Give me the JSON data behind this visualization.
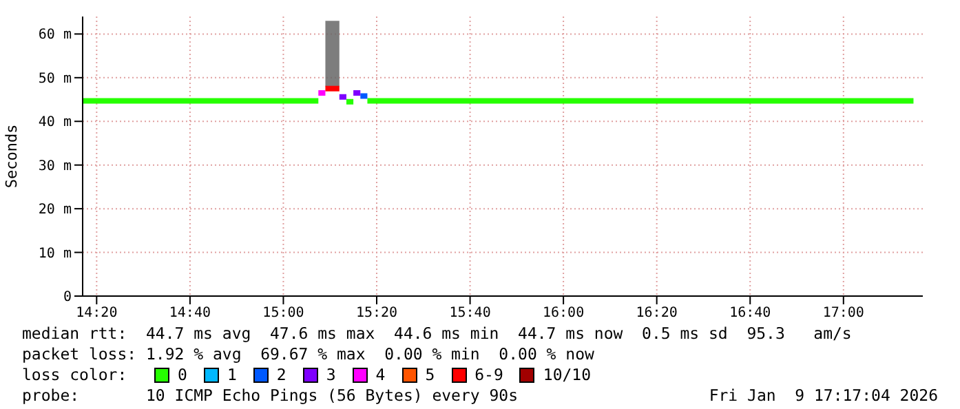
{
  "chart_data": {
    "type": "line",
    "ylabel": "Seconds",
    "xlim": [
      14.2833,
      17.2833
    ],
    "ylim": [
      0,
      64
    ],
    "xticks": [
      {
        "value": 14.3333,
        "label": "14:20"
      },
      {
        "value": 14.6667,
        "label": "14:40"
      },
      {
        "value": 15,
        "label": "15:00"
      },
      {
        "value": 15.3333,
        "label": "15:20"
      },
      {
        "value": 15.6667,
        "label": "15:40"
      },
      {
        "value": 16,
        "label": "16:00"
      },
      {
        "value": 16.3333,
        "label": "16:20"
      },
      {
        "value": 16.6667,
        "label": "16:40"
      },
      {
        "value": 17,
        "label": "17:00"
      }
    ],
    "yticks": [
      0,
      {
        "value": 10,
        "label": "10 m"
      },
      {
        "value": 20,
        "label": "20 m"
      },
      {
        "value": 30,
        "label": "30 m"
      },
      {
        "value": 40,
        "label": "40 m"
      },
      {
        "value": 50,
        "label": "50 m"
      },
      {
        "value": 60,
        "label": "60 m"
      }
    ],
    "grid": true,
    "legend": "bottom",
    "legend_title": "loss color:",
    "series": [
      {
        "name": "0",
        "color": "#26ff00",
        "x": [
          14.2833,
          15.125,
          15.15,
          15.225,
          15.25,
          15.26,
          15.3,
          17.25
        ],
        "values": [
          44.7,
          44.7,
          null,
          44.5,
          44.5,
          null,
          44.7,
          44.7
        ]
      },
      {
        "name": "1",
        "color": "#00b8ff"
      },
      {
        "name": "2",
        "color": "#0059ff",
        "x": [
          15.275,
          15.3
        ],
        "values": [
          45.8,
          45.8
        ]
      },
      {
        "name": "3",
        "color": "#7e00ff",
        "x": [
          15.2,
          15.225,
          15.23,
          15.25,
          15.275
        ],
        "values": [
          45.6,
          45.6,
          null,
          46.5,
          46.5
        ]
      },
      {
        "name": "4",
        "color": "#ff00ff",
        "x": [
          15.125,
          15.15
        ],
        "values": [
          46.5,
          46.5
        ]
      },
      {
        "name": "5",
        "color": "#ff5500"
      },
      {
        "name": "6-9",
        "color": "#ff0000",
        "x": [
          15.15,
          15.2
        ],
        "values": [
          47.5,
          47.5
        ],
        "lower": [
          48,
          48
        ],
        "upper": [
          63,
          63
        ]
      },
      {
        "name": "10/10",
        "color": "#a10000"
      }
    ],
    "annotations": [
      "median rtt:  44.7 ms avg  47.6 ms max  44.6 ms min  44.7 ms now  0.5 ms sd  95.3   am/s",
      "packet loss: 1.92 % avg  69.67 % max  0.00 % min  0.00 % now",
      "probe:       10 ICMP Echo Pings (56 Bytes) every 90s",
      "Fri Jan  9 17:17:04 2026"
    ]
  }
}
